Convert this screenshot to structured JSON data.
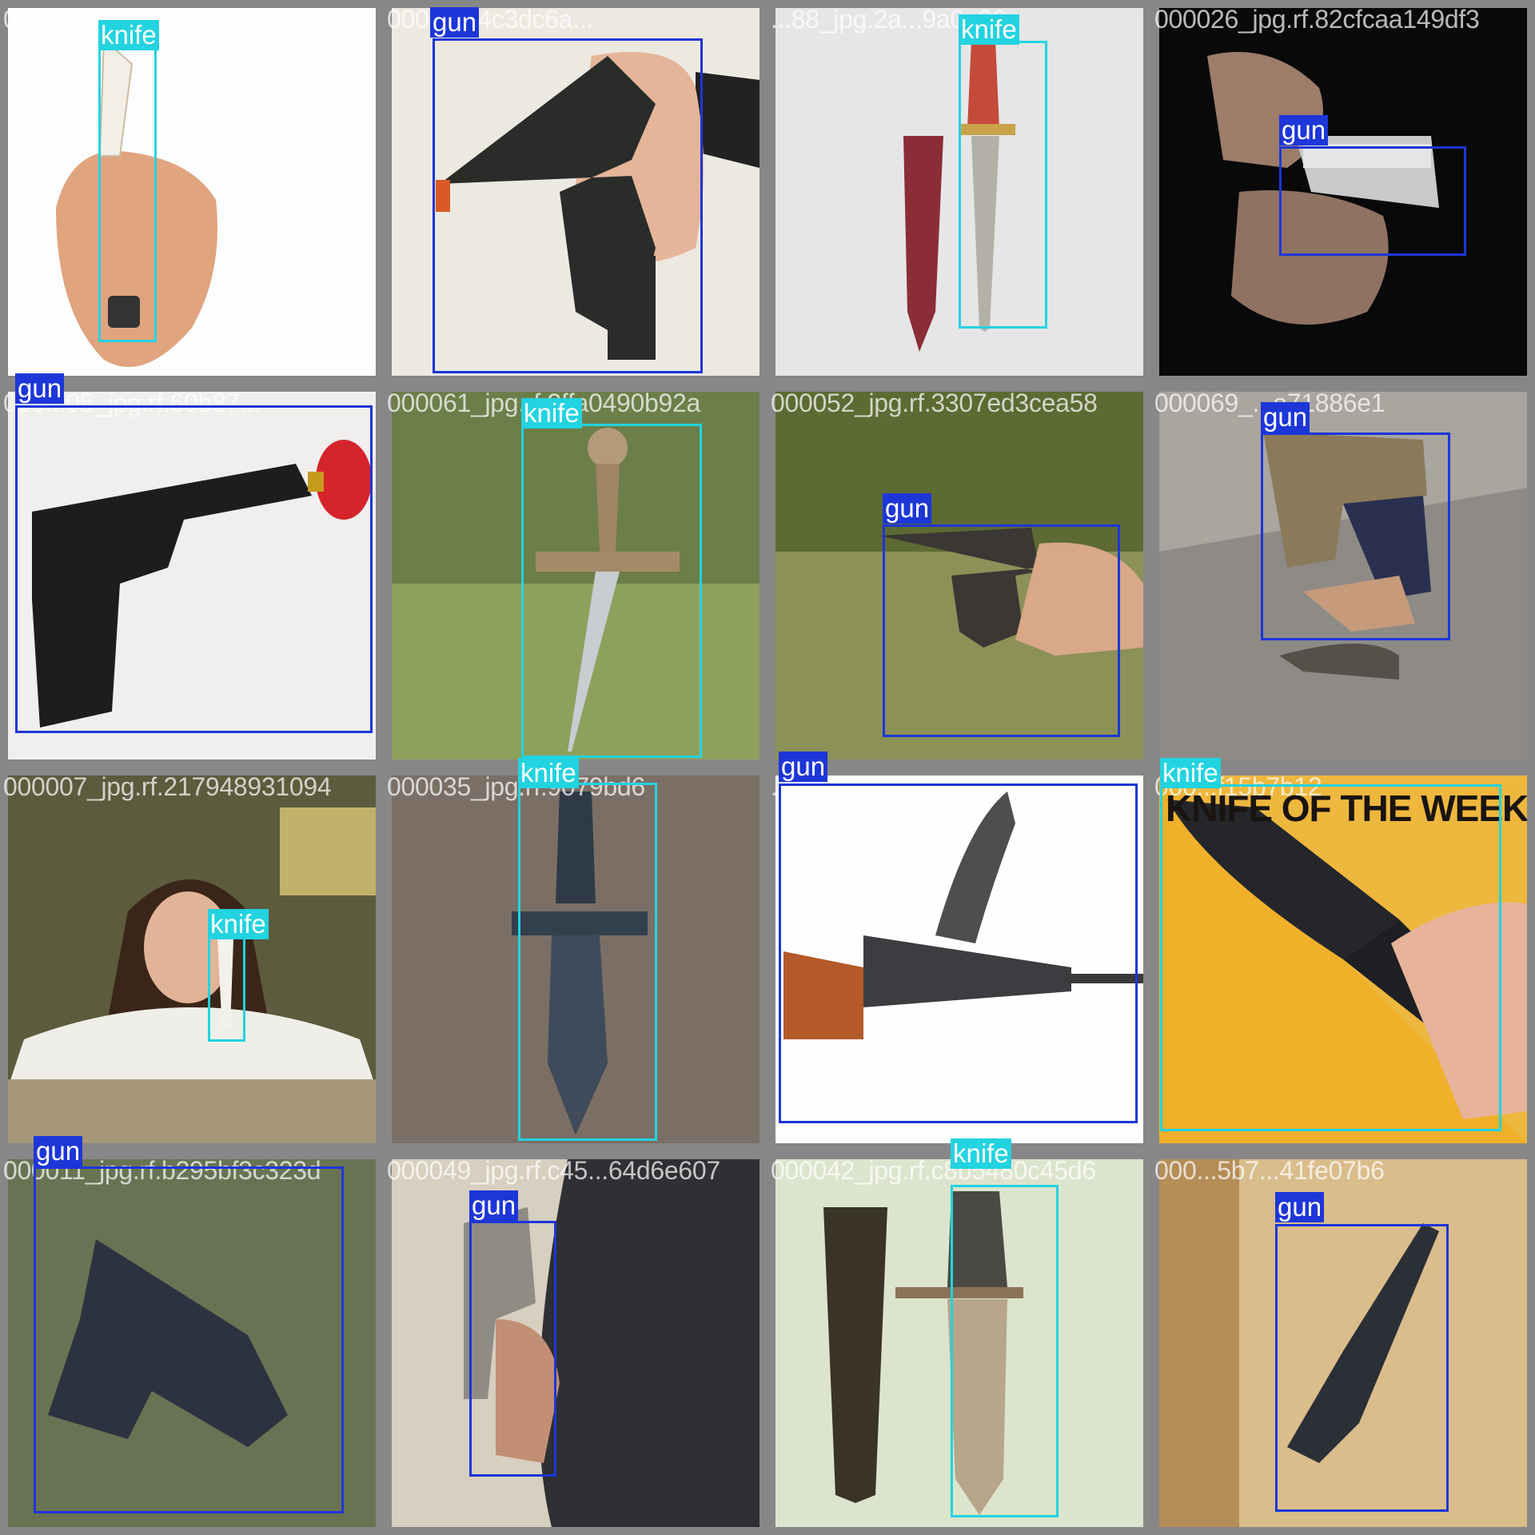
{
  "mosaic": {
    "tiles": [
      {
        "id": "t0",
        "filename": "000004_jpg.rf.be6896a193b07",
        "objects": [
          {
            "label": "knife",
            "cls": "knife"
          }
        ]
      },
      {
        "id": "t1",
        "filename": "000...9a4c3dc6a...",
        "objects": [
          {
            "label": "gun",
            "cls": "gun"
          }
        ]
      },
      {
        "id": "t2",
        "filename": "...88_jpg.2a...9a0e96a",
        "objects": [
          {
            "label": "knife",
            "cls": "knife"
          }
        ]
      },
      {
        "id": "t3",
        "filename": "000026_jpg.rf.82cfcaa149df3",
        "objects": [
          {
            "label": "gun",
            "cls": "gun"
          }
        ]
      },
      {
        "id": "t4",
        "filename": "000...05_jpg.rf.60b87...",
        "objects": [
          {
            "label": "gun",
            "cls": "gun"
          }
        ]
      },
      {
        "id": "t5",
        "filename": "000061_jpg.rf.2ffa0490b92a",
        "objects": [
          {
            "label": "knife",
            "cls": "knife"
          }
        ]
      },
      {
        "id": "t6",
        "filename": "000052_jpg.rf.3307ed3cea58",
        "objects": [
          {
            "label": "gun",
            "cls": "gun"
          }
        ]
      },
      {
        "id": "t7",
        "filename": "000069_...e71886e1",
        "objects": [
          {
            "label": "gun",
            "cls": "gun"
          }
        ]
      },
      {
        "id": "t8",
        "filename": "000007_jpg.rf.217948931094",
        "objects": [
          {
            "label": "knife",
            "cls": "knife"
          }
        ]
      },
      {
        "id": "t9",
        "filename": "000035_jpg.rf.9079bd6",
        "objects": [
          {
            "label": "knife",
            "cls": "knife"
          }
        ]
      },
      {
        "id": "t10",
        "filename": "...e1517e81",
        "objects": [
          {
            "label": "gun",
            "cls": "gun"
          }
        ]
      },
      {
        "id": "t11",
        "filename": "000...f15b7b12",
        "caption": "KNIFE OF THE WEEK",
        "objects": [
          {
            "label": "knife",
            "cls": "knife"
          }
        ]
      },
      {
        "id": "t12",
        "filename": "000011_jpg.rf.b295bf3c323d",
        "objects": [
          {
            "label": "gun",
            "cls": "gun"
          }
        ]
      },
      {
        "id": "t13",
        "filename": "000049_jpg.rf.c45...64d6e607",
        "objects": [
          {
            "label": "gun",
            "cls": "gun"
          }
        ]
      },
      {
        "id": "t14",
        "filename": "000042_jpg.rf.c8b5480c45d6",
        "objects": [
          {
            "label": "knife",
            "cls": "knife"
          }
        ]
      },
      {
        "id": "t15",
        "filename": "000...5b7...41fe07b6",
        "objects": [
          {
            "label": "gun",
            "cls": "gun"
          }
        ]
      }
    ]
  },
  "colors": {
    "gun": "#1d36d8",
    "knife": "#22d3e0"
  }
}
